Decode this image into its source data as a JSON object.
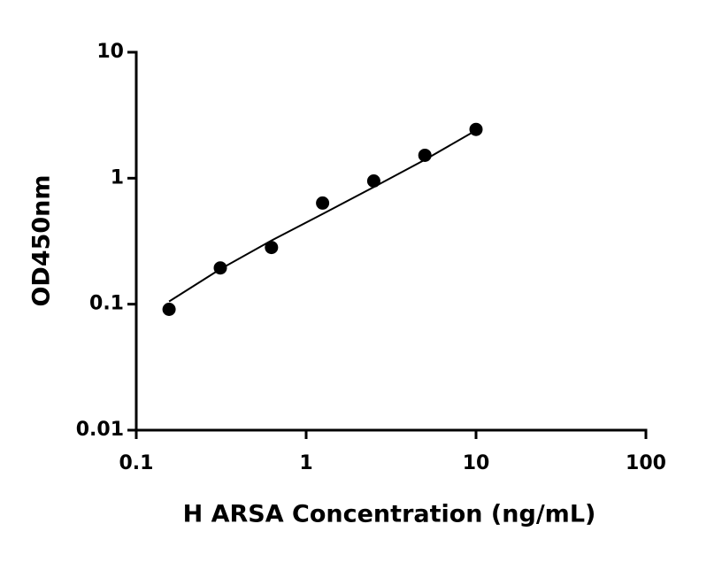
{
  "chart_data": {
    "type": "scatter",
    "x_label": "H ARSA Concentration (ng/mL)",
    "y_label": "OD450nm",
    "x_log": true,
    "y_log": true,
    "xlim": [
      0.1,
      100
    ],
    "xticks": [
      0.1,
      1,
      10,
      100
    ],
    "ylim": [
      0.01,
      10
    ],
    "yticks": [
      0.01,
      0.1,
      1,
      10
    ],
    "series": [
      {
        "x": [
          0.156,
          0.3125,
          0.625,
          1.25,
          2.5,
          5,
          10
        ],
        "values": [
          0.091,
          0.194,
          0.282,
          0.635,
          0.95,
          1.52,
          2.44
        ],
        "color": "#000000",
        "mode": "markers"
      },
      {
        "x": [
          0.156,
          0.3125,
          0.625,
          1.25,
          2.5,
          5,
          10
        ],
        "values": [
          0.105,
          0.19,
          0.32,
          0.52,
          0.85,
          1.4,
          2.4
        ],
        "color": "#000000",
        "mode": "line"
      }
    ]
  }
}
